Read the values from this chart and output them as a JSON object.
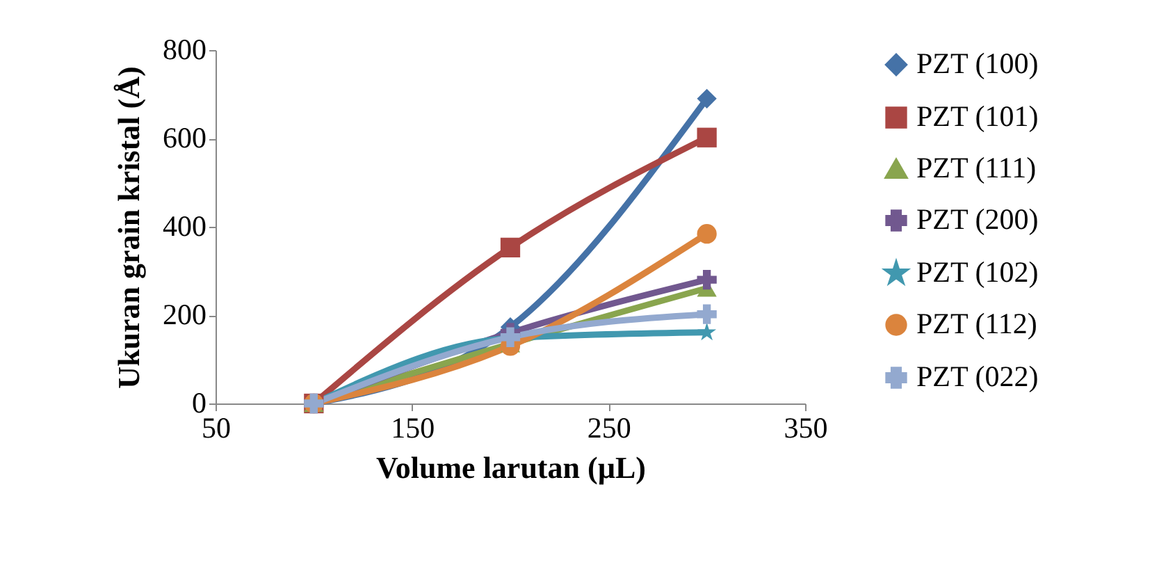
{
  "chart_data": {
    "type": "line",
    "xlabel": "Volume larutan (µL)",
    "ylabel": "Ukuran grain kristal (Å)",
    "x": [
      100,
      200,
      300
    ],
    "xlim": [
      50,
      350
    ],
    "xticks": [
      50,
      150,
      250,
      350
    ],
    "ylim": [
      0,
      800
    ],
    "yticks": [
      0,
      200,
      400,
      600,
      800
    ],
    "grid": false,
    "legend": "right",
    "series": [
      {
        "name": "PZT (100)",
        "color": "#4572a7",
        "marker": "diamond",
        "values": [
          0,
          173,
          690
        ]
      },
      {
        "name": "PZT (101)",
        "color": "#aa4643",
        "marker": "square",
        "values": [
          0,
          353,
          602
        ]
      },
      {
        "name": "PZT (111)",
        "color": "#89a54e",
        "marker": "triangle",
        "values": [
          0,
          135,
          261
        ]
      },
      {
        "name": "PZT (200)",
        "color": "#71588f",
        "marker": "cross",
        "values": [
          0,
          160,
          280
        ]
      },
      {
        "name": "PZT (102)",
        "color": "#4198af",
        "marker": "star",
        "values": [
          0,
          148,
          161
        ]
      },
      {
        "name": "PZT (112)",
        "color": "#db843d",
        "marker": "circle",
        "values": [
          0,
          130,
          384
        ]
      },
      {
        "name": "PZT (022)",
        "color": "#93a9cf",
        "marker": "cross",
        "values": [
          0,
          150,
          202
        ]
      }
    ]
  }
}
